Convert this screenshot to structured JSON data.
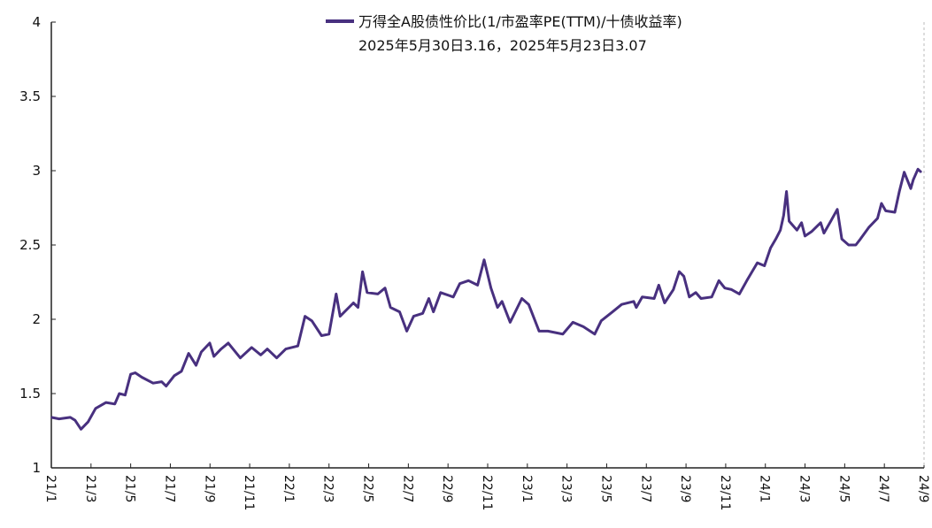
{
  "chart_data": {
    "type": "line",
    "title": "",
    "xlabel": "",
    "ylabel": "",
    "ylim": [
      1,
      4
    ],
    "xlim": [
      "2021-01-01",
      "2024-09-01"
    ],
    "yticks": [
      "1",
      "1.5",
      "2",
      "2.5",
      "3",
      "3.5",
      "4"
    ],
    "xticks": [
      "21/1",
      "21/3",
      "21/5",
      "21/7",
      "21/9",
      "21/11",
      "22/1",
      "22/3",
      "22/5",
      "22/7",
      "22/9",
      "22/11",
      "23/1",
      "23/3",
      "23/5",
      "23/7",
      "23/9",
      "23/11",
      "24/1",
      "24/3",
      "24/5",
      "24/7",
      "24/9"
    ],
    "grid": false,
    "legend_position": "top-right",
    "legend": {
      "entry": "万得全A股债性价比(1/市盈率PE(TTM)/十债收益率)",
      "note": "2025年5月30日3.16，2025年5月23日3.07"
    },
    "series": [
      {
        "name": "万得全A股债性价比(1/市盈率PE(TTM)/十债收益率)",
        "color": "#48307f",
        "points": [
          [
            "2021-01-01",
            1.34
          ],
          [
            "2021-01-13",
            1.33
          ],
          [
            "2021-01-30",
            1.34
          ],
          [
            "2021-02-07",
            1.32
          ],
          [
            "2021-02-16",
            1.26
          ],
          [
            "2021-02-27",
            1.31
          ],
          [
            "2021-03-08",
            1.4
          ],
          [
            "2021-03-24",
            1.44
          ],
          [
            "2021-04-07",
            1.43
          ],
          [
            "2021-04-14",
            1.5
          ],
          [
            "2021-04-23",
            1.49
          ],
          [
            "2021-05-01",
            1.63
          ],
          [
            "2021-05-08",
            1.64
          ],
          [
            "2021-05-18",
            1.61
          ],
          [
            "2021-06-05",
            1.57
          ],
          [
            "2021-06-18",
            1.58
          ],
          [
            "2021-06-25",
            1.55
          ],
          [
            "2021-07-07",
            1.62
          ],
          [
            "2021-07-18",
            1.65
          ],
          [
            "2021-07-29",
            1.77
          ],
          [
            "2021-08-10",
            1.69
          ],
          [
            "2021-08-18",
            1.78
          ],
          [
            "2021-08-31",
            1.84
          ],
          [
            "2021-09-07",
            1.75
          ],
          [
            "2021-09-18",
            1.8
          ],
          [
            "2021-09-29",
            1.84
          ],
          [
            "2021-10-17",
            1.74
          ],
          [
            "2021-11-04",
            1.81
          ],
          [
            "2021-11-18",
            1.76
          ],
          [
            "2021-11-28",
            1.8
          ],
          [
            "2021-12-12",
            1.74
          ],
          [
            "2021-12-26",
            1.8
          ],
          [
            "2022-01-14",
            1.82
          ],
          [
            "2022-01-25",
            2.02
          ],
          [
            "2022-02-05",
            1.99
          ],
          [
            "2022-02-20",
            1.89
          ],
          [
            "2022-03-01",
            1.9
          ],
          [
            "2022-03-12",
            2.17
          ],
          [
            "2022-03-18",
            2.02
          ],
          [
            "2022-04-08",
            2.11
          ],
          [
            "2022-04-15",
            2.08
          ],
          [
            "2022-04-22",
            2.32
          ],
          [
            "2022-04-29",
            2.18
          ],
          [
            "2022-05-15",
            2.17
          ],
          [
            "2022-05-26",
            2.21
          ],
          [
            "2022-06-04",
            2.08
          ],
          [
            "2022-06-18",
            2.05
          ],
          [
            "2022-06-29",
            1.92
          ],
          [
            "2022-07-09",
            2.02
          ],
          [
            "2022-07-23",
            2.04
          ],
          [
            "2022-08-02",
            2.14
          ],
          [
            "2022-08-09",
            2.05
          ],
          [
            "2022-08-20",
            2.18
          ],
          [
            "2022-09-09",
            2.15
          ],
          [
            "2022-09-19",
            2.24
          ],
          [
            "2022-10-02",
            2.26
          ],
          [
            "2022-10-16",
            2.23
          ],
          [
            "2022-10-26",
            2.4
          ],
          [
            "2022-11-06",
            2.21
          ],
          [
            "2022-11-16",
            2.08
          ],
          [
            "2022-11-23",
            2.12
          ],
          [
            "2022-12-05",
            1.98
          ],
          [
            "2022-12-23",
            2.14
          ],
          [
            "2023-01-03",
            2.1
          ],
          [
            "2023-01-19",
            1.92
          ],
          [
            "2023-02-02",
            1.92
          ],
          [
            "2023-02-25",
            1.9
          ],
          [
            "2023-03-10",
            1.98
          ],
          [
            "2023-03-26",
            1.95
          ],
          [
            "2023-04-13",
            1.9
          ],
          [
            "2023-04-23",
            1.99
          ],
          [
            "2023-05-10",
            2.05
          ],
          [
            "2023-05-24",
            2.1
          ],
          [
            "2023-06-12",
            2.12
          ],
          [
            "2023-06-16",
            2.08
          ],
          [
            "2023-06-25",
            2.15
          ],
          [
            "2023-07-13",
            2.14
          ],
          [
            "2023-07-20",
            2.23
          ],
          [
            "2023-07-29",
            2.11
          ],
          [
            "2023-08-12",
            2.2
          ],
          [
            "2023-08-21",
            2.32
          ],
          [
            "2023-08-28",
            2.29
          ],
          [
            "2023-09-06",
            2.15
          ],
          [
            "2023-09-16",
            2.18
          ],
          [
            "2023-09-24",
            2.14
          ],
          [
            "2023-10-10",
            2.15
          ],
          [
            "2023-10-21",
            2.26
          ],
          [
            "2023-10-30",
            2.21
          ],
          [
            "2023-11-10",
            2.2
          ],
          [
            "2023-11-22",
            2.17
          ],
          [
            "2023-12-03",
            2.26
          ],
          [
            "2023-12-19",
            2.38
          ],
          [
            "2023-12-30",
            2.36
          ],
          [
            "2024-01-09",
            2.48
          ],
          [
            "2024-01-17",
            2.54
          ],
          [
            "2024-01-24",
            2.6
          ],
          [
            "2024-01-29",
            2.7
          ],
          [
            "2024-02-03",
            2.86
          ],
          [
            "2024-02-07",
            2.66
          ],
          [
            "2024-02-19",
            2.6
          ],
          [
            "2024-02-26",
            2.65
          ],
          [
            "2024-03-01",
            2.56
          ],
          [
            "2024-03-11",
            2.59
          ],
          [
            "2024-03-25",
            2.65
          ],
          [
            "2024-03-30",
            2.58
          ],
          [
            "2024-04-10",
            2.66
          ],
          [
            "2024-04-20",
            2.74
          ],
          [
            "2024-04-27",
            2.54
          ],
          [
            "2024-05-07",
            2.5
          ],
          [
            "2024-05-18",
            2.5
          ],
          [
            "2024-05-25",
            2.54
          ],
          [
            "2024-06-08",
            2.62
          ],
          [
            "2024-06-21",
            2.68
          ],
          [
            "2024-06-27",
            2.78
          ],
          [
            "2024-07-03",
            2.73
          ],
          [
            "2024-07-17",
            2.72
          ],
          [
            "2024-07-24",
            2.86
          ],
          [
            "2024-08-01",
            2.99
          ],
          [
            "2024-08-11",
            2.88
          ],
          [
            "2024-08-15",
            2.94
          ],
          [
            "2024-08-22",
            3.01
          ],
          [
            "2024-08-27",
            2.99
          ]
        ]
      }
    ]
  }
}
